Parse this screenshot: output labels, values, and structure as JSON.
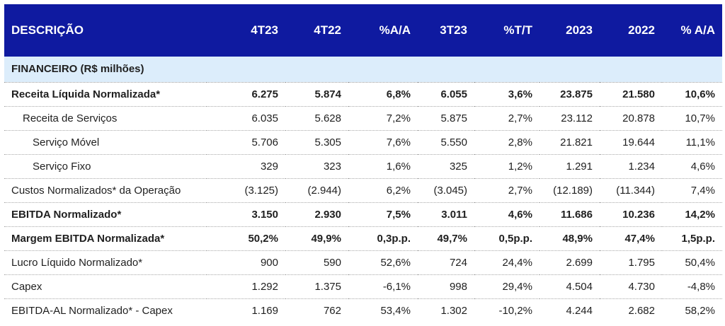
{
  "header": {
    "descricao": "DESCRIÇÃO",
    "col_4t23": "4T23",
    "col_4t22": "4T22",
    "col_aa1": "%A/A",
    "col_3t23": "3T23",
    "col_tt": "%T/T",
    "col_2023": "2023",
    "col_2022": "2022",
    "col_aa2": "% A/A"
  },
  "section": {
    "label": "FINANCEIRO (R$ milhões)"
  },
  "rows": [
    {
      "label": "Receita Líquida Normalizada*",
      "v4t23": "6.275",
      "v4t22": "5.874",
      "aa1": "6,8%",
      "v3t23": "6.055",
      "tt": "3,6%",
      "v2023": "23.875",
      "v2022": "21.580",
      "aa2": "10,6%"
    },
    {
      "label": "Receita de Serviços",
      "v4t23": "6.035",
      "v4t22": "5.628",
      "aa1": "7,2%",
      "v3t23": "5.875",
      "tt": "2,7%",
      "v2023": "23.112",
      "v2022": "20.878",
      "aa2": "10,7%"
    },
    {
      "label": "Serviço Móvel",
      "v4t23": "5.706",
      "v4t22": "5.305",
      "aa1": "7,6%",
      "v3t23": "5.550",
      "tt": "2,8%",
      "v2023": "21.821",
      "v2022": "19.644",
      "aa2": "11,1%"
    },
    {
      "label": "Serviço Fixo",
      "v4t23": "329",
      "v4t22": "323",
      "aa1": "1,6%",
      "v3t23": "325",
      "tt": "1,2%",
      "v2023": "1.291",
      "v2022": "1.234",
      "aa2": "4,6%"
    },
    {
      "label": "Custos Normalizados* da Operação",
      "v4t23": "(3.125)",
      "v4t22": "(2.944)",
      "aa1": "6,2%",
      "v3t23": "(3.045)",
      "tt": "2,7%",
      "v2023": "(12.189)",
      "v2022": "(11.344)",
      "aa2": "7,4%"
    },
    {
      "label": "EBITDA Normalizado*",
      "v4t23": "3.150",
      "v4t22": "2.930",
      "aa1": "7,5%",
      "v3t23": "3.011",
      "tt": "4,6%",
      "v2023": "11.686",
      "v2022": "10.236",
      "aa2": "14,2%"
    },
    {
      "label": "Margem EBITDA Normalizada*",
      "v4t23": "50,2%",
      "v4t22": "49,9%",
      "aa1": "0,3p.p.",
      "v3t23": "49,7%",
      "tt": "0,5p.p.",
      "v2023": "48,9%",
      "v2022": "47,4%",
      "aa2": "1,5p.p."
    },
    {
      "label": "Lucro Líquido Normalizado*",
      "v4t23": "900",
      "v4t22": "590",
      "aa1": "52,6%",
      "v3t23": "724",
      "tt": "24,4%",
      "v2023": "2.699",
      "v2022": "1.795",
      "aa2": "50,4%"
    },
    {
      "label": "Capex",
      "v4t23": "1.292",
      "v4t22": "1.375",
      "aa1": "-6,1%",
      "v3t23": "998",
      "tt": "29,4%",
      "v2023": "4.504",
      "v2022": "4.730",
      "aa2": "-4,8%"
    },
    {
      "label": "EBITDA-AL Normalizado* - Capex",
      "v4t23": "1.169",
      "v4t22": "762",
      "aa1": "53,4%",
      "v3t23": "1.302",
      "tt": "-10,2%",
      "v2023": "4.244",
      "v2022": "2.682",
      "aa2": "58,2%"
    }
  ],
  "colors": {
    "header_bg": "#0f1aa0",
    "section_bg": "#dcedfb"
  }
}
